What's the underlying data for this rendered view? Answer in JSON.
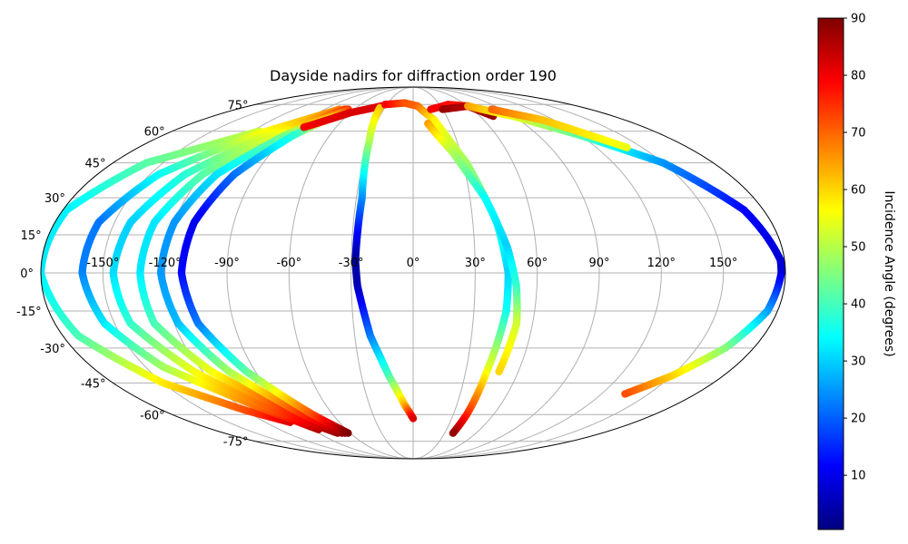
{
  "chart_data": {
    "type": "scatter",
    "projection": "mollweide",
    "title": "Dayside nadirs for diffraction order 190",
    "grid": true,
    "lon_ticks": [
      -150,
      -120,
      -90,
      -60,
      -30,
      0,
      30,
      60,
      90,
      120,
      150
    ],
    "lon_tick_labels": [
      "-150°",
      "-120°",
      "-90°",
      "-60°",
      "-30°",
      "0°",
      "30°",
      "60°",
      "90°",
      "120°",
      "150°"
    ],
    "lat_ticks": [
      75,
      60,
      45,
      30,
      15,
      0,
      -15,
      -30,
      -45,
      -60,
      -75
    ],
    "lat_tick_labels": [
      "75°",
      "60°",
      "45°",
      "30°",
      "15°",
      "0°",
      "-15°",
      "-30°",
      "-45°",
      "-60°",
      "-75°"
    ],
    "colormap": "jet",
    "colorbar": {
      "label": "Incidence Angle (degrees)",
      "range": [
        0.5,
        90
      ],
      "ticks": [
        10,
        20,
        30,
        40,
        50,
        60,
        70,
        80,
        90
      ],
      "tick_labels": [
        "10",
        "20",
        "30",
        "40",
        "50",
        "60",
        "70",
        "80",
        "90"
      ],
      "placement": "right"
    },
    "tracks": [
      {
        "points": [
          [
            -115,
            60,
            52
          ],
          [
            -160,
            45,
            42
          ],
          [
            -178,
            25,
            33
          ],
          [
            -180,
            0,
            32
          ],
          [
            -172,
            -25,
            40
          ],
          [
            -150,
            -45,
            58
          ],
          [
            -120,
            -58,
            72
          ],
          [
            -100,
            -64,
            82
          ]
        ]
      },
      {
        "points": [
          [
            -75,
            72,
            68
          ],
          [
            -115,
            58,
            55
          ],
          [
            -145,
            40,
            35
          ],
          [
            -158,
            20,
            22
          ],
          [
            -160,
            0,
            23
          ],
          [
            -155,
            -20,
            32
          ],
          [
            -140,
            -38,
            48
          ],
          [
            -110,
            -55,
            68
          ],
          [
            -85,
            -68,
            85
          ]
        ]
      },
      {
        "points": [
          [
            -70,
            72,
            72
          ],
          [
            -105,
            58,
            55
          ],
          [
            -130,
            40,
            38
          ],
          [
            -142,
            20,
            30
          ],
          [
            -145,
            0,
            31
          ],
          [
            -142,
            -20,
            38
          ],
          [
            -125,
            -40,
            55
          ],
          [
            -100,
            -58,
            72
          ],
          [
            -72,
            -70,
            88
          ]
        ]
      },
      {
        "points": [
          [
            -68,
            72,
            75
          ],
          [
            -98,
            58,
            55
          ],
          [
            -120,
            40,
            42
          ],
          [
            -130,
            20,
            32
          ],
          [
            -132,
            0,
            32
          ],
          [
            -130,
            -20,
            40
          ],
          [
            -115,
            -40,
            55
          ],
          [
            -90,
            -58,
            75
          ],
          [
            -68,
            -70,
            88
          ]
        ]
      },
      {
        "points": [
          [
            -67,
            72,
            76
          ],
          [
            -92,
            58,
            45
          ],
          [
            -112,
            40,
            32
          ],
          [
            -120,
            20,
            25
          ],
          [
            -122,
            0,
            25
          ],
          [
            -118,
            -20,
            28
          ],
          [
            -105,
            -40,
            48
          ],
          [
            -82,
            -60,
            75
          ],
          [
            -65,
            -70,
            88
          ]
        ]
      },
      {
        "points": [
          [
            -66,
            72,
            74
          ],
          [
            -86,
            58,
            38
          ],
          [
            -102,
            40,
            22
          ],
          [
            -110,
            20,
            10
          ],
          [
            -112,
            0,
            12
          ],
          [
            -108,
            -20,
            22
          ],
          [
            -95,
            -40,
            42
          ],
          [
            -75,
            -60,
            72
          ],
          [
            -62,
            -70,
            90
          ]
        ]
      },
      {
        "points": [
          [
            -85,
            62,
            80
          ],
          [
            -60,
            70,
            82
          ],
          [
            -35,
            74,
            82
          ]
        ]
      },
      {
        "points": [
          [
            -35,
            73,
            62
          ],
          [
            -30,
            55,
            50
          ],
          [
            -27,
            30,
            25
          ],
          [
            -28,
            5,
            3
          ],
          [
            -27,
            -5,
            5
          ],
          [
            -22,
            -25,
            22
          ],
          [
            -14,
            -42,
            40
          ],
          [
            -6,
            -55,
            62
          ],
          [
            0,
            -62,
            82
          ]
        ]
      },
      {
        "points": [
          [
            -32,
            75,
            80
          ],
          [
            -10,
            76,
            72
          ],
          [
            5,
            74,
            70
          ],
          [
            18,
            66,
            58
          ],
          [
            32,
            45,
            48
          ],
          [
            42,
            20,
            38
          ],
          [
            46,
            0,
            30
          ],
          [
            46,
            -15,
            35
          ],
          [
            42,
            -40,
            55
          ],
          [
            40,
            -60,
            75
          ],
          [
            38,
            -70,
            88
          ]
        ]
      },
      {
        "points": [
          [
            12,
            64,
            65
          ],
          [
            25,
            50,
            50
          ],
          [
            38,
            30,
            35
          ],
          [
            46,
            10,
            30
          ],
          [
            50,
            -5,
            38
          ],
          [
            52,
            -20,
            52
          ],
          [
            49,
            -40,
            60
          ]
        ]
      },
      {
        "points": [
          [
            18,
            72,
            80
          ],
          [
            40,
            75,
            78
          ],
          [
            60,
            74,
            76
          ]
        ]
      },
      {
        "points": [
          [
            30,
            72,
            88
          ],
          [
            60,
            74,
            85
          ],
          [
            72,
            68,
            88
          ]
        ]
      },
      {
        "points": [
          [
            60,
            74,
            65
          ],
          [
            90,
            68,
            55
          ],
          [
            120,
            58,
            42
          ],
          [
            150,
            45,
            25
          ],
          [
            170,
            25,
            12
          ],
          [
            178,
            5,
            8
          ],
          [
            178,
            0,
            8
          ],
          [
            175,
            -15,
            25
          ],
          [
            165,
            -30,
            45
          ],
          [
            150,
            -42,
            60
          ],
          [
            135,
            -50,
            72
          ]
        ]
      },
      {
        "points": [
          [
            80,
            72,
            70
          ],
          [
            110,
            66,
            62
          ],
          [
            140,
            52,
            55
          ]
        ]
      }
    ]
  }
}
